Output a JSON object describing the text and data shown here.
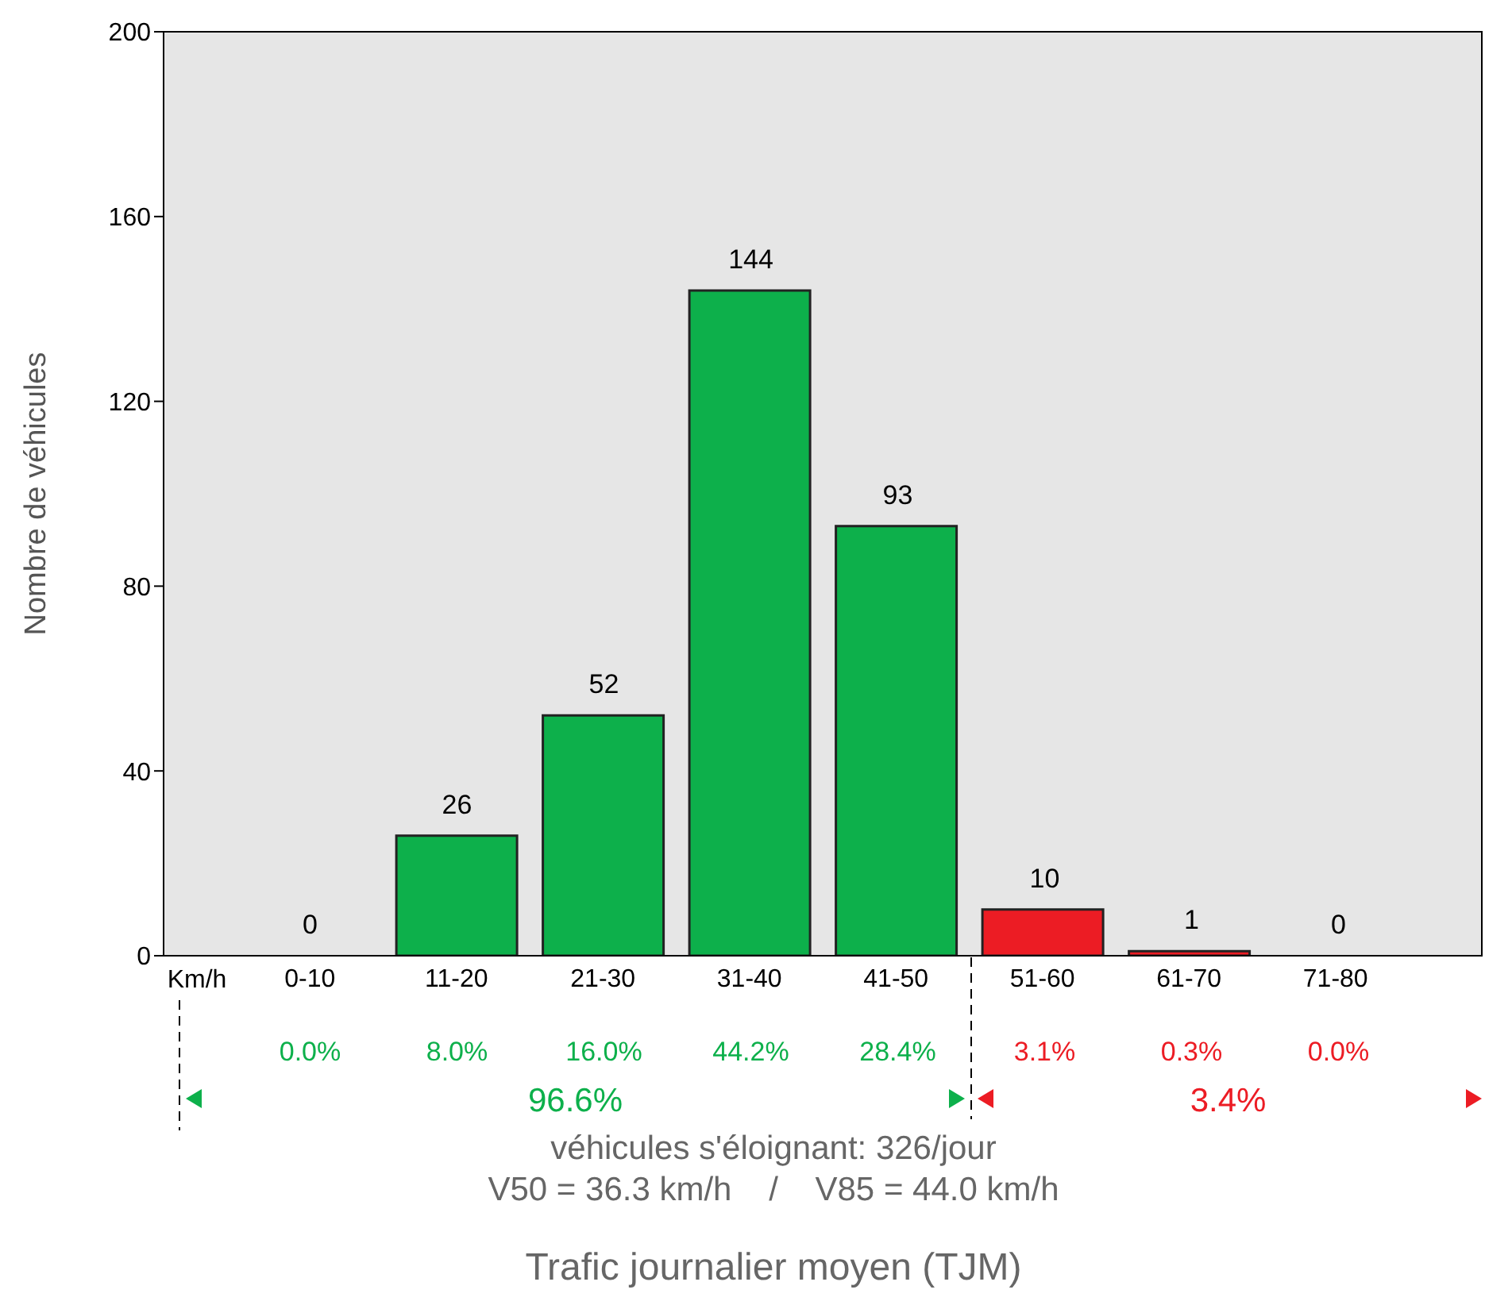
{
  "chart_data": {
    "type": "bar",
    "title": "Trafic journalier moyen (TJM)",
    "xlabel": "Km/h",
    "ylabel": "Nombre de véhicules",
    "categories": [
      "0-10",
      "11-20",
      "21-30",
      "31-40",
      "41-50",
      "51-60",
      "61-70",
      "71-80"
    ],
    "values": [
      0,
      26,
      52,
      144,
      93,
      10,
      1,
      0
    ],
    "colors": [
      "#0db04b",
      "#0db04b",
      "#0db04b",
      "#0db04b",
      "#0db04b",
      "#ec1c24",
      "#ec1c24",
      "#ec1c24"
    ],
    "ylim": [
      0,
      200
    ],
    "yticks": [
      0,
      40,
      80,
      120,
      160,
      200
    ],
    "data_labels": true,
    "annotations": [
      "0.0%",
      "8.0%",
      "16.0%",
      "44.2%",
      "28.4%",
      "3.1%",
      "0.3%",
      "0.0%",
      "96.6%",
      "3.4%",
      "véhicules s'éloignant: 326/jour",
      "V50 = 36.3 km/h    /    V85 = 44.0 km/h"
    ]
  }
}
